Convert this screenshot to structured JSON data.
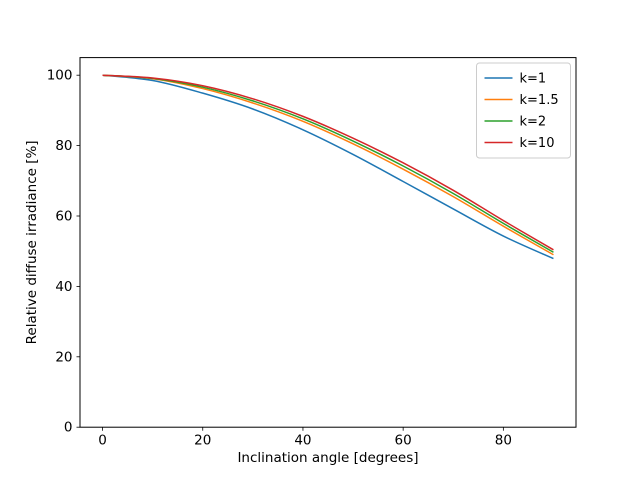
{
  "figure": {
    "background": "#ffffff",
    "title": ""
  },
  "chart_data": {
    "type": "line",
    "title": "",
    "xlabel": "Inclination angle [degrees]",
    "ylabel": "Relative diffuse irradiance [%]",
    "xlim": [
      -4.5,
      94.5
    ],
    "ylim": [
      0,
      105
    ],
    "xticks": [
      0,
      20,
      40,
      60,
      80
    ],
    "yticks": [
      0,
      20,
      40,
      60,
      80,
      100
    ],
    "grid": false,
    "legend_position": "upper right",
    "x": [
      0,
      10,
      20,
      30,
      40,
      50,
      60,
      70,
      80,
      90
    ],
    "series": [
      {
        "name": "k=1",
        "color": "#1f77b4",
        "values": [
          100,
          98.5,
          94.9,
          90.4,
          84.5,
          77.5,
          69.8,
          62.0,
          54.3,
          47.9
        ]
      },
      {
        "name": "k=1.5",
        "color": "#ff7f0e",
        "values": [
          100,
          99.0,
          96.2,
          92.1,
          86.9,
          80.5,
          73.3,
          65.5,
          57.1,
          49.0
        ]
      },
      {
        "name": "k=2",
        "color": "#2ca02c",
        "values": [
          100,
          99.1,
          96.6,
          92.7,
          87.6,
          81.3,
          74.2,
          66.4,
          57.9,
          49.7
        ]
      },
      {
        "name": "k=10",
        "color": "#d62728",
        "values": [
          100,
          99.2,
          97.0,
          93.3,
          88.3,
          82.1,
          75.1,
          67.3,
          58.7,
          50.4
        ]
      }
    ],
    "spine_color": "#000000",
    "tick_color": "#000000",
    "legend_border_color": "#cccccc"
  }
}
